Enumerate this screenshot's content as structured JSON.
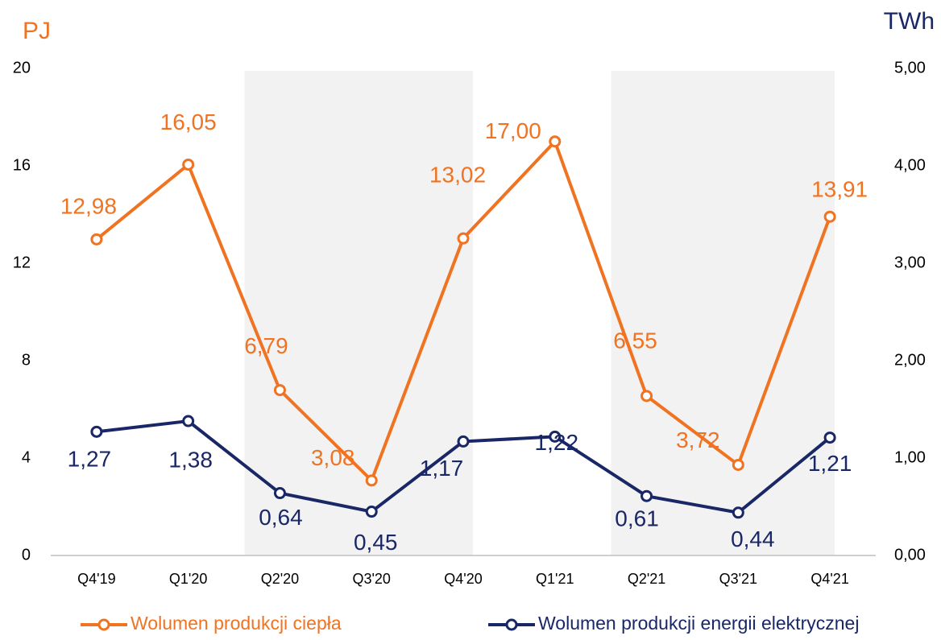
{
  "chart_data": {
    "type": "line",
    "categories": [
      "Q4'19",
      "Q1'20",
      "Q2'20",
      "Q3'20",
      "Q4'20",
      "Q1'21",
      "Q2'21",
      "Q3'21",
      "Q4'21"
    ],
    "y_label": "PJ",
    "y2_label": "TWh",
    "ylim": [
      0,
      20
    ],
    "yticks": [
      0,
      4,
      8,
      12,
      16,
      20
    ],
    "y2lim": [
      0,
      5
    ],
    "y2ticks": [
      {
        "value": 0,
        "label": "0,00"
      },
      {
        "value": 1,
        "label": "1,00"
      },
      {
        "value": 2,
        "label": "2,00"
      },
      {
        "value": 3,
        "label": "3,00"
      },
      {
        "value": 4,
        "label": "4,00"
      },
      {
        "value": 5,
        "label": "5,00"
      }
    ],
    "series": [
      {
        "name": "Wolumen produkcji ciepła",
        "color": "#f07322",
        "values": [
          12.98,
          16.05,
          6.79,
          3.08,
          13.02,
          17.0,
          6.55,
          3.72,
          13.91
        ],
        "value_labels": [
          "12,98",
          "16,05",
          "6,79",
          "3,08",
          "13,02",
          "17,00",
          "6,55",
          "3,72",
          "13,91"
        ]
      },
      {
        "name": "Wolumen produkcji energii elektrycznej",
        "color": "#1a2766",
        "axis": "y2",
        "values": [
          1.27,
          1.38,
          0.64,
          0.45,
          1.17,
          1.22,
          0.61,
          0.44,
          1.21
        ],
        "value_labels": [
          "1,27",
          "1,38",
          "0,64",
          "0,45",
          "1,17",
          "1,22",
          "0,61",
          "0,44",
          "1,21"
        ]
      }
    ]
  }
}
